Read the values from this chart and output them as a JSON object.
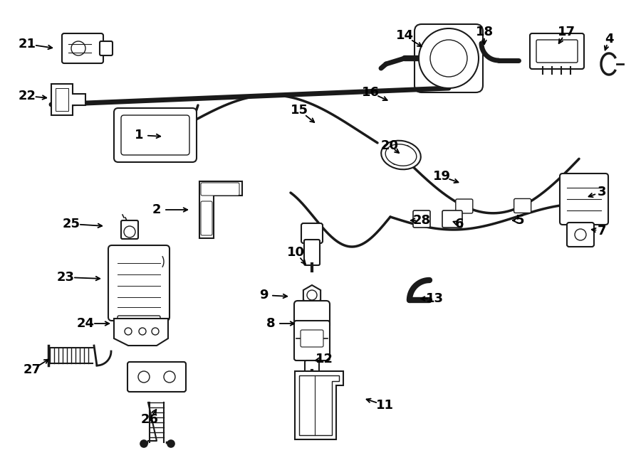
{
  "background_color": "#ffffff",
  "line_color": "#1a1a1a",
  "figsize": [
    9.0,
    6.61
  ],
  "dpi": 100,
  "labels": [
    [
      1,
      195,
      190,
      230,
      192
    ],
    [
      2,
      220,
      295,
      268,
      295
    ],
    [
      3,
      845,
      270,
      822,
      278
    ],
    [
      4,
      855,
      55,
      848,
      75
    ],
    [
      5,
      730,
      310,
      715,
      310
    ],
    [
      6,
      645,
      315,
      632,
      310
    ],
    [
      7,
      845,
      325,
      826,
      322
    ],
    [
      8,
      380,
      455,
      418,
      455
    ],
    [
      9,
      370,
      415,
      408,
      417
    ],
    [
      10,
      415,
      355,
      432,
      375
    ],
    [
      11,
      540,
      570,
      510,
      560
    ],
    [
      12,
      455,
      505,
      438,
      508
    ],
    [
      13,
      610,
      420,
      586,
      420
    ],
    [
      14,
      568,
      50,
      596,
      68
    ],
    [
      15,
      420,
      155,
      445,
      175
    ],
    [
      16,
      520,
      130,
      548,
      143
    ],
    [
      17,
      795,
      45,
      782,
      65
    ],
    [
      18,
      680,
      45,
      680,
      67
    ],
    [
      19,
      620,
      248,
      648,
      258
    ],
    [
      20,
      547,
      205,
      564,
      218
    ],
    [
      21,
      38,
      62,
      78,
      68
    ],
    [
      22,
      38,
      135,
      70,
      138
    ],
    [
      23,
      92,
      390,
      145,
      392
    ],
    [
      24,
      120,
      455,
      158,
      455
    ],
    [
      25,
      100,
      315,
      148,
      318
    ],
    [
      26,
      210,
      590,
      222,
      572
    ],
    [
      27,
      45,
      520,
      72,
      503
    ],
    [
      28,
      592,
      310,
      572,
      310
    ]
  ]
}
